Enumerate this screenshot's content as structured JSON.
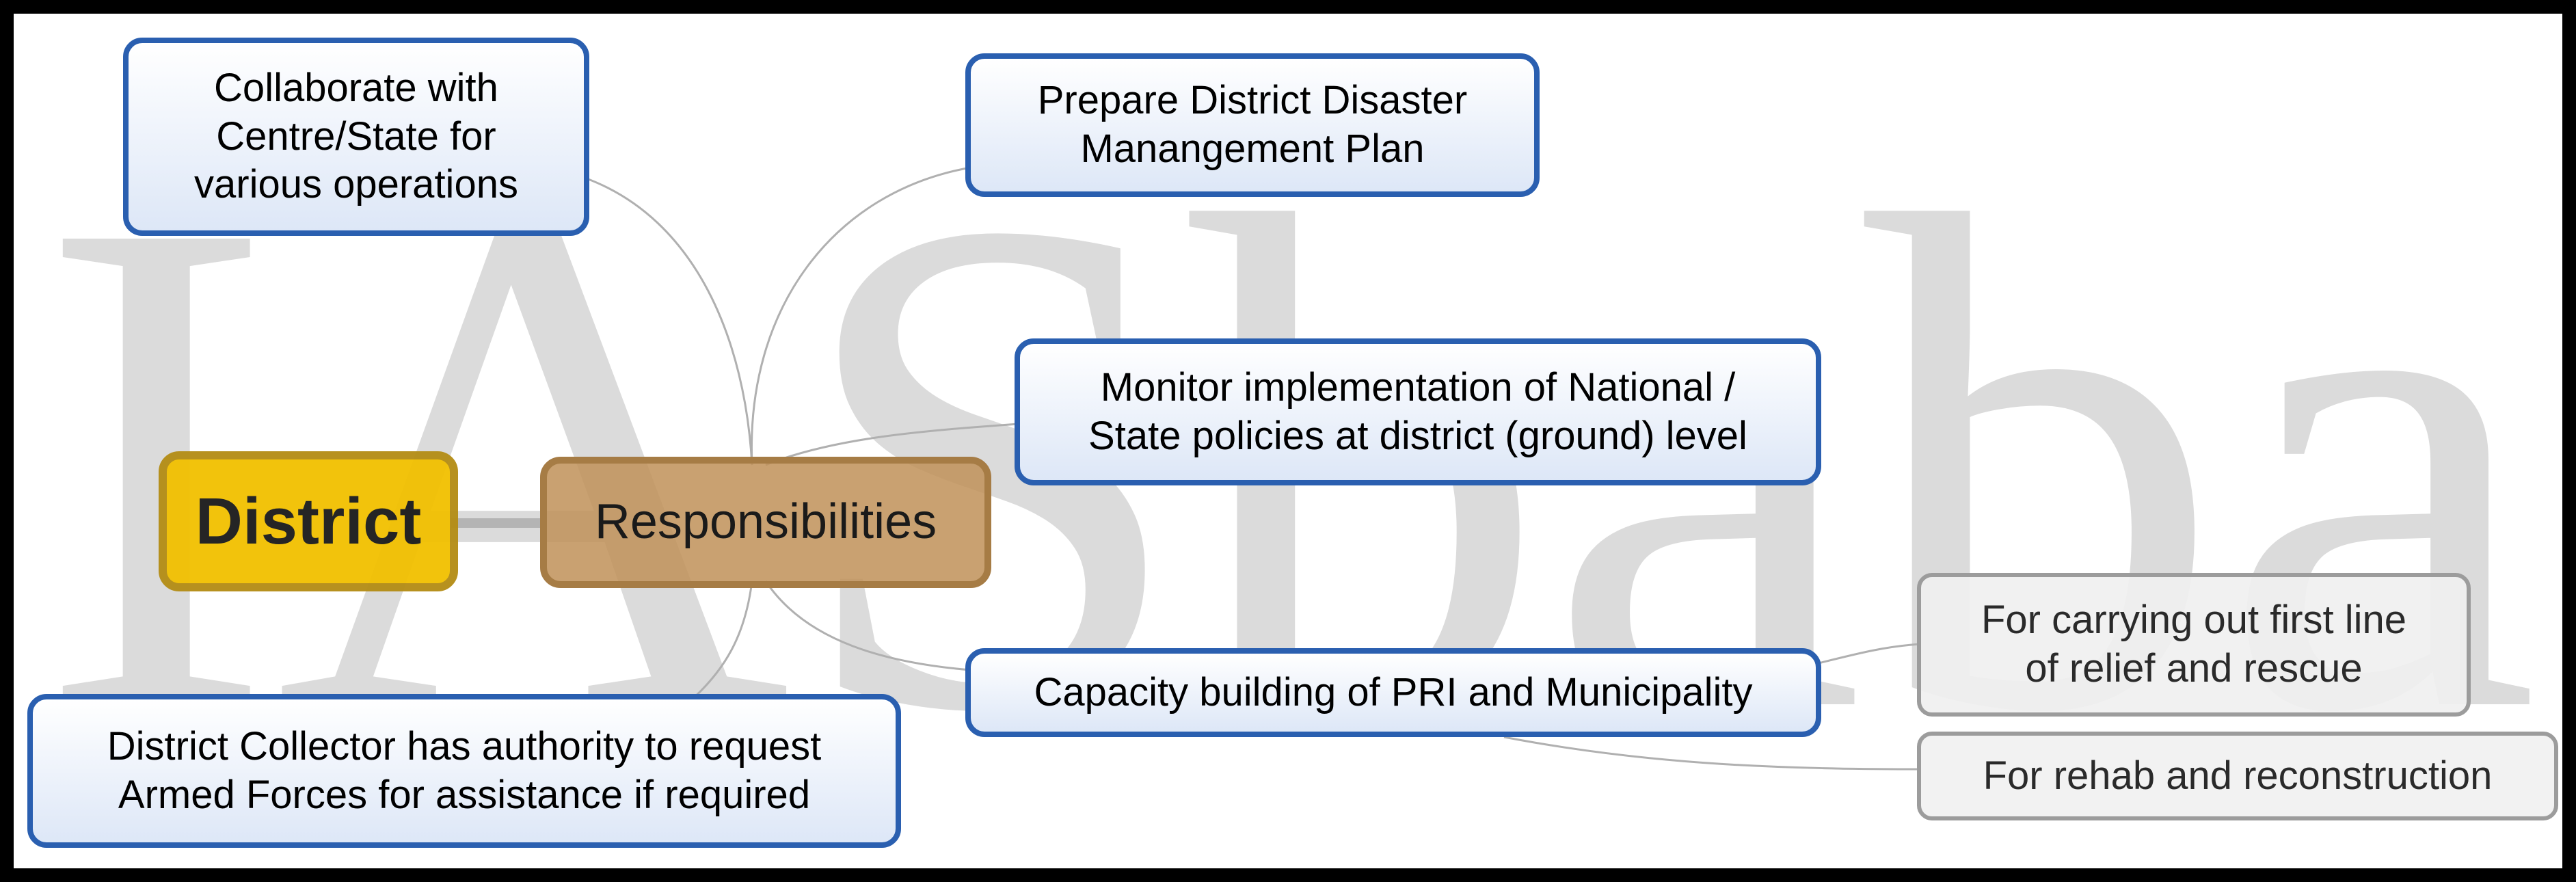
{
  "watermark": {
    "text": "IASbaba",
    "color": "#cfcfcf"
  },
  "colors": {
    "frame": "#000000",
    "background": "#ffffff",
    "central_fill": "#f2c000",
    "central_border": "#b48c14",
    "branch_fill": "#c09058",
    "branch_border": "#a67c45",
    "leaf_border": "#2a5fb0",
    "subleaf_border": "#9c9c9c",
    "connector": "#b0b0b0"
  },
  "diagram": {
    "central": {
      "text": "District"
    },
    "branch": {
      "text": "Responsibilities"
    },
    "leaves": {
      "collaborate": {
        "lines": [
          "Collaborate with",
          "Centre/State for",
          "various operations"
        ]
      },
      "prepare": {
        "lines": [
          "Prepare District Disaster",
          "Manangement Plan"
        ]
      },
      "monitor": {
        "lines": [
          "Monitor implementation of National /",
          "State policies at district (ground) level"
        ]
      },
      "capacity": {
        "lines": [
          "Capacity building of PRI and Municipality"
        ]
      },
      "collector": {
        "lines": [
          "District Collector has authority to request",
          "Armed Forces for assistance if required"
        ]
      }
    },
    "subleaves": {
      "firstline": {
        "lines": [
          "For carrying out first line",
          "of relief and rescue"
        ]
      },
      "rehab": {
        "lines": [
          "For rehab and reconstruction"
        ]
      }
    }
  }
}
